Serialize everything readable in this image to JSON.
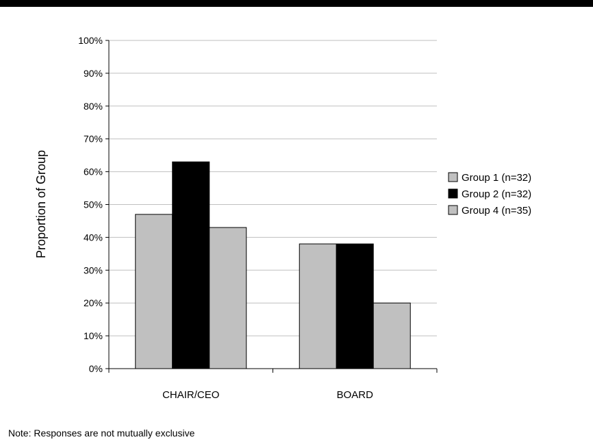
{
  "chart_data": {
    "type": "bar",
    "categories": [
      "CHAIR/CEO",
      "BOARD"
    ],
    "series": [
      {
        "name": "Group 1 (n=32)",
        "values": [
          47,
          38
        ],
        "color": "#c0c0c0"
      },
      {
        "name": "Group 2 (n=32)",
        "values": [
          63,
          38
        ],
        "color": "#000000"
      },
      {
        "name": "Group 4 (n=35)",
        "values": [
          43,
          20
        ],
        "color": "#c0c0c0"
      }
    ],
    "ylabel": "Proportion of Group",
    "ylim": [
      0,
      100
    ],
    "yticks": [
      "0%",
      "10%",
      "20%",
      "30%",
      "40%",
      "50%",
      "60%",
      "70%",
      "80%",
      "90%",
      "100%"
    ],
    "grid": true,
    "legend_position": "right"
  },
  "note": "Note: Responses are not mutually exclusive"
}
